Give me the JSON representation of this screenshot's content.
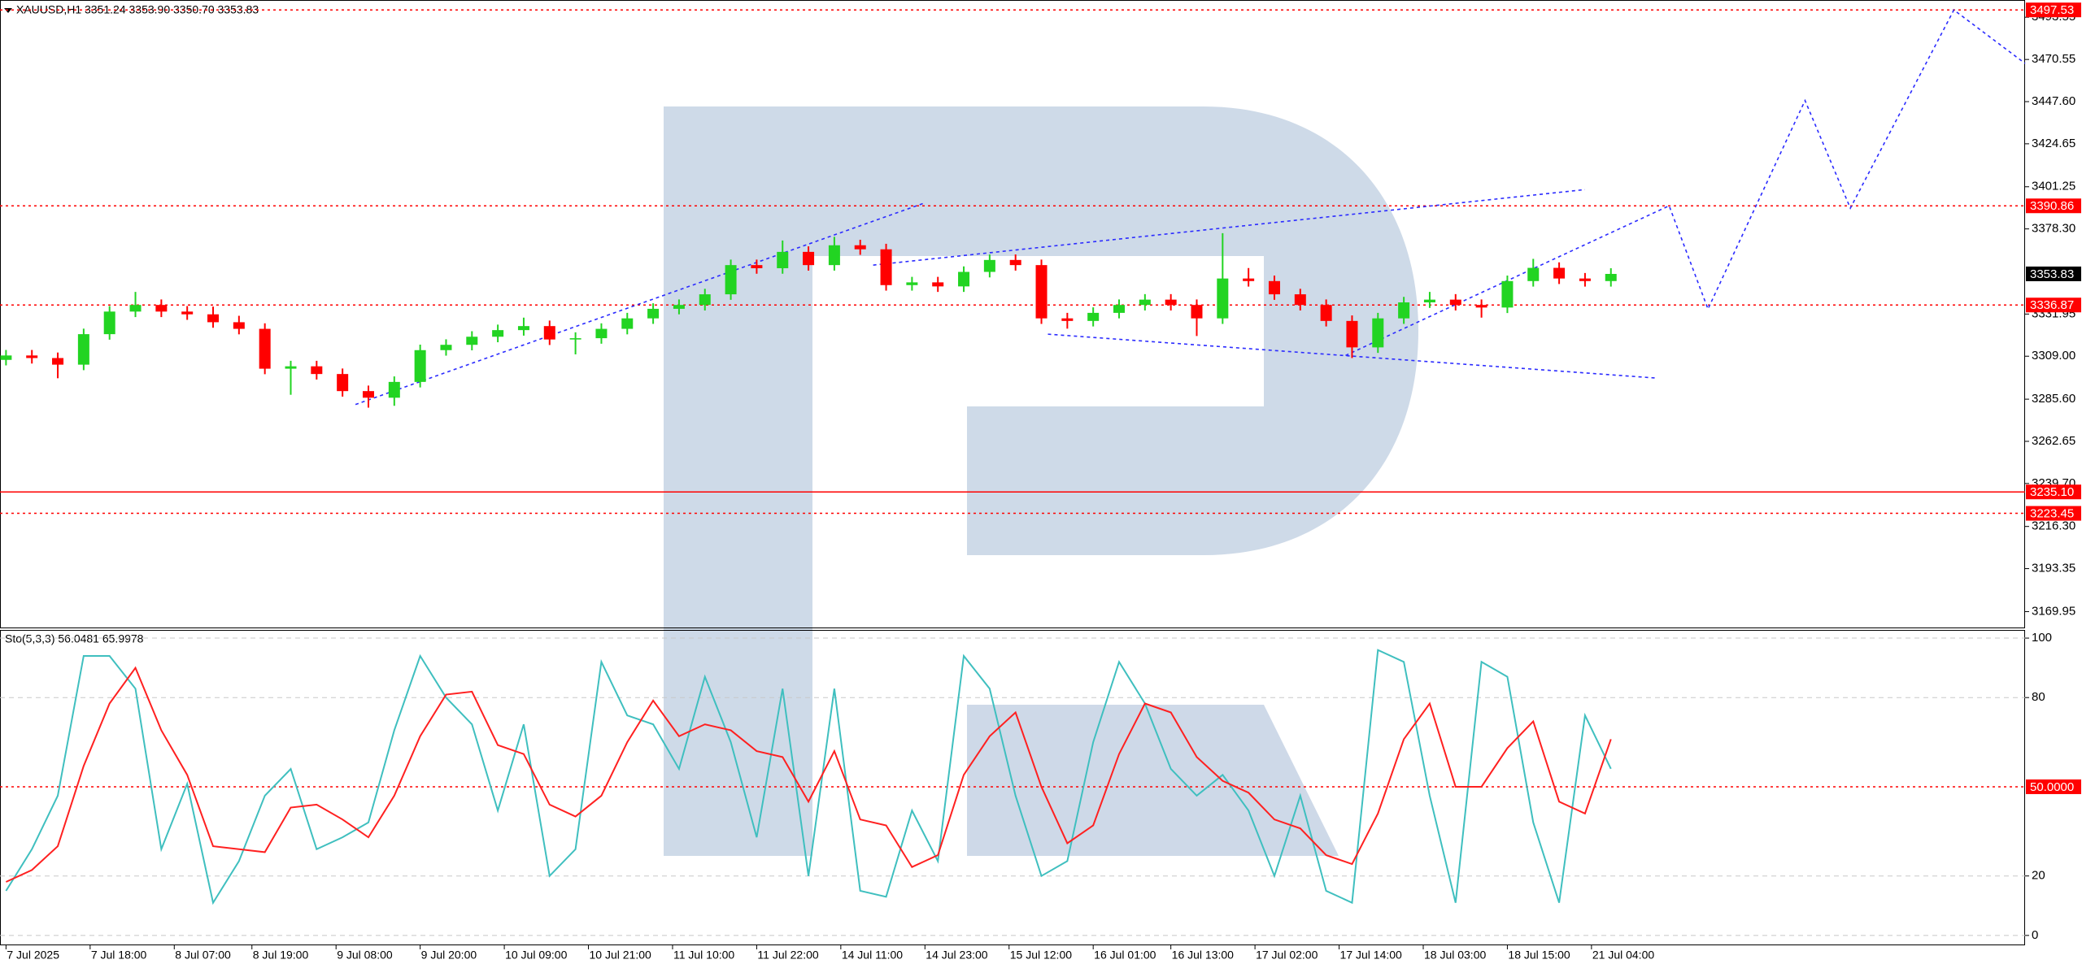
{
  "chart_data": [
    {
      "type": "candlestick",
      "title": "XAUUSD,H1  3351.24 3353.90 3350.70 3353.83",
      "x": [
        0,
        4,
        8,
        12,
        16,
        20,
        24,
        28,
        32,
        36,
        40,
        44,
        48,
        52,
        56,
        60,
        64,
        68,
        72,
        76,
        80,
        84,
        88,
        92,
        96,
        100,
        104,
        108,
        112,
        116,
        120,
        124,
        128,
        132,
        136,
        140,
        144,
        148,
        152,
        156,
        160,
        164,
        168,
        172,
        176,
        180,
        184,
        188,
        192,
        196,
        200,
        204,
        208,
        212,
        216,
        220,
        224,
        228,
        232,
        236,
        240,
        244,
        248
      ],
      "open": [
        3307.0,
        3309.4,
        3308.0,
        3304.4,
        3321.0,
        3333.3,
        3336.9,
        3333.3,
        3331.8,
        3327.5,
        3323.9,
        3302.2,
        3303.5,
        3299.3,
        3290.0,
        3286.4,
        3295.0,
        3312.3,
        3315.2,
        3319.6,
        3323.2,
        3325.4,
        3318.1,
        3318.8,
        3323.9,
        3329.6,
        3334.8,
        3336.9,
        3342.7,
        3358.6,
        3356.9,
        3365.8,
        3358.6,
        3369.4,
        3367.2,
        3347.7,
        3349.2,
        3347.0,
        3354.9,
        3361.4,
        3358.6,
        3329.6,
        3328.2,
        3332.6,
        3336.9,
        3339.8,
        3336.9,
        3329.6,
        3351.3,
        3349.9,
        3342.7,
        3336.9,
        3328.2,
        3313.8,
        3329.6,
        3338.3,
        3339.8,
        3336.9,
        3335.5,
        3349.9,
        3357.1,
        3351.3,
        3349.9
      ],
      "high": [
        3312.4,
        3312.4,
        3311.0,
        3324.0,
        3336.3,
        3344.0,
        3339.9,
        3336.3,
        3336.0,
        3331.0,
        3326.9,
        3306.5,
        3306.5,
        3302.3,
        3293.0,
        3298.0,
        3315.3,
        3318.2,
        3322.6,
        3326.2,
        3330.0,
        3328.4,
        3322.0,
        3326.9,
        3332.6,
        3337.8,
        3339.9,
        3345.7,
        3361.6,
        3361.6,
        3372.0,
        3368.8,
        3374.0,
        3372.4,
        3370.2,
        3352.2,
        3352.2,
        3357.9,
        3364.4,
        3364.4,
        3361.6,
        3332.6,
        3335.6,
        3339.9,
        3342.8,
        3342.8,
        3339.9,
        3376.0,
        3357.0,
        3352.9,
        3345.7,
        3339.9,
        3331.2,
        3332.6,
        3341.3,
        3344.0,
        3342.8,
        3339.9,
        3352.9,
        3362.0,
        3360.1,
        3354.3,
        3356.9
      ],
      "low": [
        3304.0,
        3305.0,
        3297.0,
        3301.4,
        3318.0,
        3330.3,
        3330.3,
        3328.8,
        3324.5,
        3320.9,
        3299.2,
        3288.0,
        3296.3,
        3287.0,
        3281.0,
        3282.0,
        3292.0,
        3309.3,
        3312.2,
        3316.6,
        3320.2,
        3315.1,
        3310.0,
        3315.8,
        3320.9,
        3326.6,
        3331.8,
        3333.9,
        3339.7,
        3353.9,
        3353.9,
        3355.6,
        3355.6,
        3364.2,
        3344.7,
        3344.7,
        3344.0,
        3344.0,
        3351.9,
        3355.6,
        3326.6,
        3324.0,
        3325.2,
        3329.6,
        3333.9,
        3333.9,
        3320.0,
        3326.6,
        3346.9,
        3339.7,
        3333.9,
        3325.2,
        3308.0,
        3310.8,
        3326.6,
        3335.3,
        3333.9,
        3330.0,
        3332.5,
        3346.9,
        3348.3,
        3346.9,
        3346.9
      ],
      "close": [
        3309.4,
        3308.0,
        3304.4,
        3321.0,
        3333.3,
        3336.9,
        3333.3,
        3331.8,
        3327.5,
        3323.9,
        3302.2,
        3303.5,
        3299.3,
        3290.0,
        3286.4,
        3295.0,
        3312.3,
        3315.2,
        3319.6,
        3323.2,
        3325.4,
        3318.1,
        3318.8,
        3323.9,
        3329.6,
        3334.8,
        3336.9,
        3342.7,
        3358.6,
        3356.9,
        3365.8,
        3358.6,
        3369.4,
        3367.2,
        3347.7,
        3349.2,
        3347.0,
        3354.9,
        3361.4,
        3358.6,
        3329.6,
        3328.2,
        3332.6,
        3336.9,
        3339.8,
        3336.9,
        3329.6,
        3351.3,
        3349.9,
        3342.7,
        3336.9,
        3328.2,
        3313.8,
        3329.6,
        3338.3,
        3339.8,
        3336.9,
        3335.5,
        3349.9,
        3357.1,
        3351.3,
        3349.9,
        3353.8
      ],
      "up_color": "#22d422",
      "down_color": "#ff0000",
      "xlim": [
        -0.3,
        312
      ],
      "ylim": [
        3161.3,
        3501.6
      ],
      "grid": false,
      "yticks": [
        3493.55,
        3470.55,
        {
          "value": 3447.6,
          "label": "3447.60"
        },
        3424.65,
        3401.25,
        {
          "value": 3378.3,
          "label": "3378.30"
        },
        3331.95,
        {
          "value": 3309,
          "label": "3309.00"
        },
        {
          "value": 3285.6,
          "label": "3285.60"
        },
        3262.65,
        {
          "value": 3239.7,
          "label": "3239.70"
        },
        {
          "value": 3216.3,
          "label": "3216.30"
        },
        3193.35,
        3169.95
      ],
      "level_color": "#ff0000",
      "levels": [
        {
          "value": 3497.53,
          "style": "dotted"
        },
        {
          "value": 3390.86,
          "style": "dotted"
        },
        {
          "value": 3336.87,
          "style": "dotted"
        },
        {
          "value": 3235.1,
          "label": "3235.10",
          "style": "solid"
        },
        {
          "value": 3223.45,
          "style": "dotted"
        }
      ],
      "last_price": 3353.83,
      "trendline_color": "#2b2bff",
      "trendlines": [
        {
          "x": [
            54,
            142
          ],
          "y": [
            3282.7,
            3392.5
          ]
        },
        {
          "x": [
            134,
            244
          ],
          "y": [
            3358.6,
            3399.7
          ]
        },
        {
          "x": [
            161,
            255
          ],
          "y": [
            3321.0,
            3297.1
          ]
        },
        {
          "x": [
            207,
            257,
            263,
            278,
            285,
            301,
            312
          ],
          "y": [
            3309.4,
            3390.9,
            3334.7,
            3448.2,
            3389.6,
            3497.5,
            3468.4
          ]
        }
      ]
    },
    {
      "type": "line",
      "title": "Sto(5,3,3) 56.0481 65.9978",
      "x": [
        0,
        4,
        8,
        12,
        16,
        20,
        24,
        28,
        32,
        36,
        40,
        44,
        48,
        52,
        56,
        60,
        64,
        68,
        72,
        76,
        80,
        84,
        88,
        92,
        96,
        100,
        104,
        108,
        112,
        116,
        120,
        124,
        128,
        132,
        136,
        140,
        144,
        148,
        152,
        156,
        160,
        164,
        168,
        172,
        176,
        180,
        184,
        188,
        192,
        196,
        200,
        204,
        208,
        212,
        216,
        220,
        224,
        228,
        232,
        236,
        240,
        244,
        248
      ],
      "series": [
        {
          "color": "#3fbfbf",
          "values": [
            15,
            29,
            47,
            94,
            94,
            83,
            29,
            51,
            11,
            25,
            47,
            56,
            29,
            33,
            38,
            69,
            94,
            80,
            71,
            42,
            71,
            20,
            29,
            92,
            74,
            71,
            56,
            87,
            65,
            33,
            83,
            20,
            83,
            15,
            13,
            42,
            25,
            94,
            83,
            47,
            20,
            25,
            65,
            92,
            78,
            56,
            47,
            54,
            42,
            20,
            47,
            15,
            11,
            96,
            92,
            47,
            11,
            92,
            87,
            38,
            11,
            74,
            56.0481
          ]
        },
        {
          "color": "#ff2020",
          "values": [
            18,
            22,
            30,
            57,
            78,
            90,
            69,
            54,
            30,
            29,
            28,
            43,
            44,
            39,
            33,
            47,
            67,
            81,
            82,
            64,
            61,
            44,
            40,
            47,
            65,
            79,
            67,
            71,
            69,
            62,
            60,
            45,
            62,
            39,
            37,
            23,
            27,
            54,
            67,
            75,
            50,
            31,
            37,
            61,
            78,
            75,
            60,
            52,
            48,
            39,
            36,
            27,
            24,
            41,
            66,
            78,
            50,
            50,
            63,
            72,
            45,
            41,
            65.9978
          ]
        }
      ],
      "xlim": [
        -0.3,
        312
      ],
      "ylim": [
        -2.5,
        102.2
      ],
      "grid": true,
      "yticks": [
        0,
        20,
        80,
        100
      ],
      "level_color": "#ff0000",
      "levels": [
        {
          "value": 50,
          "label": "50.0000",
          "style": "dotted"
        }
      ],
      "xticks": [
        {
          "value": 0,
          "label": "7 Jul 2025"
        },
        {
          "value": 13,
          "label": "7 Jul 18:00"
        },
        {
          "value": 26,
          "label": "8 Jul 07:00"
        },
        {
          "value": 38,
          "label": "8 Jul 19:00"
        },
        {
          "value": 51,
          "label": "9 Jul 08:00"
        },
        {
          "value": 64,
          "label": "9 Jul 20:00"
        },
        {
          "value": 77,
          "label": "10 Jul 09:00"
        },
        {
          "value": 90,
          "label": "10 Jul 21:00"
        },
        {
          "value": 103,
          "label": "11 Jul 10:00"
        },
        {
          "value": 116,
          "label": "11 Jul 22:00"
        },
        {
          "value": 129,
          "label": "14 Jul 11:00"
        },
        {
          "value": 142,
          "label": "14 Jul 23:00"
        },
        {
          "value": 155,
          "label": "15 Jul 12:00"
        },
        {
          "value": 168,
          "label": "16 Jul 01:00"
        },
        {
          "value": 180,
          "label": "16 Jul 13:00"
        },
        {
          "value": 193,
          "label": "17 Jul 02:00"
        },
        {
          "value": 206,
          "label": "17 Jul 14:00"
        },
        {
          "value": 219,
          "label": "18 Jul 03:00"
        },
        {
          "value": 232,
          "label": "18 Jul 15:00"
        },
        {
          "value": 245,
          "label": "21 Jul 04:00"
        }
      ]
    }
  ]
}
